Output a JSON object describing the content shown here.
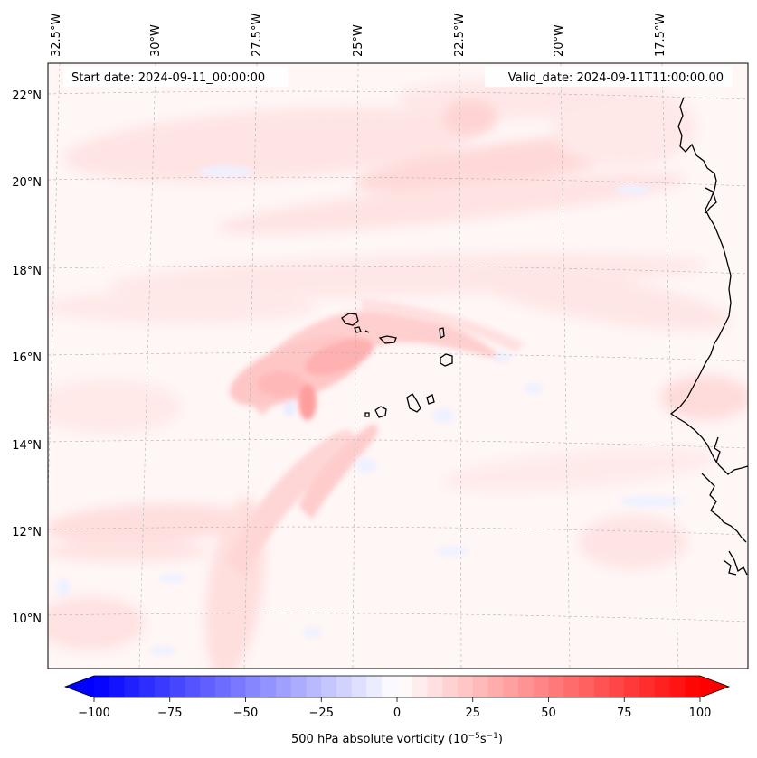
{
  "header": {
    "start_date": "Start date: 2024-09-11_00:00:00",
    "valid_date": "Valid_date: 2024-09-11T11:00:00.00"
  },
  "axes": {
    "longitude_labels": [
      "32.5°W",
      "30°W",
      "27.5°W",
      "25°W",
      "22.5°W",
      "20°W",
      "17.5°W"
    ],
    "latitude_labels": [
      "22°N",
      "20°N",
      "18°N",
      "16°N",
      "14°N",
      "12°N",
      "10°N"
    ]
  },
  "colorbar": {
    "ticks": [
      "−100",
      "−75",
      "−50",
      "−25",
      "0",
      "25",
      "50",
      "75",
      "100"
    ],
    "label_main": "500 hPa absolute vorticity (10",
    "label_exp1": "−5",
    "label_mid": "s",
    "label_exp2": "−1",
    "label_end": ")",
    "min": -100,
    "max": 100,
    "levels": 40,
    "color_low": "#0000ff",
    "color_mid": "#ffffff",
    "color_high": "#ff0000"
  },
  "colors": {
    "land_outline": "#000000",
    "gridline": "#b0b0b0",
    "field_background": "#fff6f6"
  }
}
